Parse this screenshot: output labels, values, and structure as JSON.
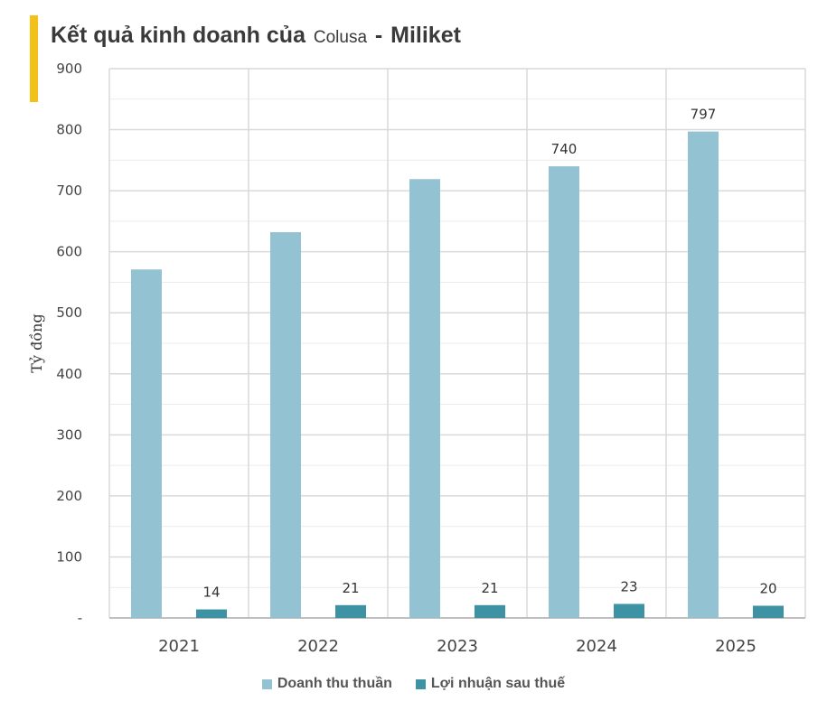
{
  "header": {
    "title_main": "Kết quả kinh doanh của",
    "title_brand": "Colusa",
    "title_sep": "-",
    "title_end": "Miliket"
  },
  "colors": {
    "accent": "#F2C21B",
    "revenue": "#93C2D2",
    "profit": "#3D93A4",
    "grid": "#D9D9D9"
  },
  "chart_data": {
    "type": "bar",
    "title": "Kết quả kinh doanh của Colusa - Miliket",
    "xlabel": "",
    "ylabel": "Tỷ đồng",
    "ylim": [
      0,
      900
    ],
    "yticks": [
      0,
      100,
      200,
      300,
      400,
      500,
      600,
      700,
      800,
      900
    ],
    "categories": [
      "2021",
      "2022",
      "2023",
      "2024",
      "2025"
    ],
    "series": [
      {
        "name": "Doanh thu thuần",
        "values": [
          571,
          632,
          719,
          740,
          797
        ],
        "labels": [
          null,
          null,
          null,
          "740",
          "797"
        ]
      },
      {
        "name": "Lợi nhuận sau thuế",
        "values": [
          14,
          21,
          21,
          23,
          20
        ],
        "labels": [
          "14",
          "21",
          "21",
          "23",
          "20"
        ]
      }
    ],
    "grid": true,
    "legend_position": "bottom"
  }
}
